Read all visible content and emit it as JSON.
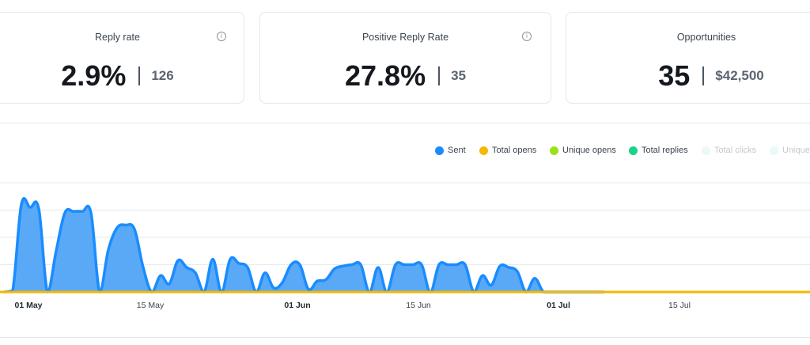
{
  "cards": [
    {
      "label": "Reply rate",
      "value": "2.9%",
      "secondary": "126",
      "has_info": true
    },
    {
      "label": "Positive Reply Rate",
      "value": "27.8%",
      "secondary": "35",
      "has_info": true
    },
    {
      "label": "Opportunities",
      "value": "35",
      "secondary": "$42,500",
      "has_info": false
    }
  ],
  "legend": [
    {
      "label": "Sent",
      "color": "#1a8cff",
      "active": true
    },
    {
      "label": "Total opens",
      "color": "#f5b800",
      "active": true
    },
    {
      "label": "Unique opens",
      "color": "#9be11a",
      "active": true
    },
    {
      "label": "Total replies",
      "color": "#17d48a",
      "active": true
    },
    {
      "label": "Total clicks",
      "color": "#e9f7f7",
      "active": false
    },
    {
      "label": "Unique",
      "color": "#e9f7f7",
      "active": false
    }
  ],
  "chart_data": {
    "type": "area",
    "x_ticks": [
      {
        "label": "01 May",
        "bold": true
      },
      {
        "label": "15 May",
        "bold": false
      },
      {
        "label": "01 Jun",
        "bold": true
      },
      {
        "label": "15 Jun",
        "bold": false
      },
      {
        "label": "01 Jul",
        "bold": true
      },
      {
        "label": "15 Jul",
        "bold": false
      }
    ],
    "series": [
      {
        "name": "Sent",
        "color": "#1a8cff",
        "fill": "#5aa9f7",
        "values": [
          0,
          0.05,
          3.2,
          3.1,
          3.05,
          0,
          1.5,
          2.9,
          2.95,
          2.95,
          2.9,
          0,
          1.55,
          2.35,
          2.45,
          2.3,
          0.9,
          0,
          0.6,
          0.3,
          1.15,
          0.9,
          0.7,
          0,
          1.2,
          0,
          1.2,
          1.05,
          0.9,
          0,
          0.7,
          0.15,
          0.35,
          1.0,
          1.0,
          0.1,
          0.4,
          0.45,
          0.85,
          0.95,
          1.0,
          1.0,
          0,
          0.9,
          0,
          1.0,
          1.0,
          1.0,
          1.0,
          0,
          1.0,
          1.0,
          1.0,
          1.0,
          0,
          0.6,
          0.25,
          0.95,
          0.9,
          0.75,
          0,
          0.5,
          0,
          0,
          0,
          0,
          0,
          0,
          0,
          0
        ]
      },
      {
        "name": "Total opens",
        "color": "#f5b800",
        "values": [
          0,
          0,
          0,
          0,
          0,
          0,
          0,
          0,
          0,
          0,
          0,
          0,
          0,
          0,
          0,
          0,
          0,
          0,
          0,
          0,
          0,
          0,
          0,
          0,
          0,
          0,
          0,
          0,
          0,
          0,
          0,
          0,
          0,
          0,
          0,
          0,
          0,
          0,
          0,
          0,
          0,
          0,
          0,
          0,
          0,
          0,
          0,
          0,
          0,
          0,
          0,
          0,
          0,
          0,
          0,
          0,
          0,
          0,
          0,
          0,
          0,
          0,
          0,
          0,
          0,
          0,
          0,
          0,
          0,
          0
        ]
      }
    ],
    "ylim": [
      0,
      4
    ],
    "grid": true
  }
}
